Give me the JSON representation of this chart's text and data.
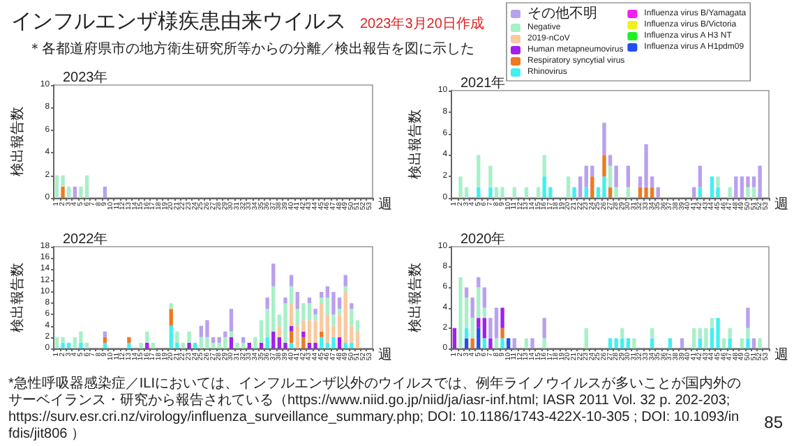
{
  "chart_data": [
    {
      "type": "other",
      "title": "インフルエンザ様疾患由来ウイルス",
      "subtitle": "2023年3月20日作成",
      "annotations": [
        "＊各都道府県市の地方衛生研究所等からの分離／検出報告を図に示した",
        "*急性呼吸器感染症／ILIにおいては、インフルエンザ以外のウイルスでは、例年ライノウイルスが多いことが国内外のサーベイランス・研究から報告されている（https://www.niid.go.jp/niid/ja/iasr-inf.html; IASR 2011 Vol. 32 p. 202-203; https://surv.esr.cri.nz/virology/influenza_surveillance_summary.php; DOI: 10.1186/1743-422X-10-305 ; DOI: 10.1093/infdis/jit806 ）",
        "85"
      ]
    },
    {
      "type": "bar",
      "title": "2023年",
      "xlabel": "週",
      "ylabel": "検出報告数",
      "stacked": true,
      "ylim": [
        0,
        10
      ],
      "yticks": [
        0,
        2,
        4,
        6,
        8,
        10
      ],
      "categories": [
        "1",
        "2",
        "3",
        "4",
        "5",
        "6",
        "7",
        "8",
        "9",
        "10",
        "11",
        "12",
        "13",
        "14",
        "15",
        "16",
        "17",
        "18",
        "19",
        "20",
        "21",
        "22",
        "23",
        "24",
        "25",
        "26",
        "27",
        "28",
        "29",
        "30",
        "31",
        "32",
        "33",
        "34",
        "35",
        "36",
        "37",
        "38",
        "39",
        "40",
        "41",
        "42",
        "43",
        "44",
        "45",
        "46",
        "47",
        "48",
        "49",
        "50",
        "51",
        "52",
        "53"
      ],
      "series": [
        {
          "color": "#f07820",
          "values": [
            0,
            1,
            0,
            0,
            0,
            0,
            0,
            0,
            0,
            0,
            0,
            0,
            0,
            0,
            0,
            0,
            0,
            0,
            0,
            0,
            0,
            0,
            0,
            0,
            0,
            0,
            0,
            0,
            0,
            0,
            0,
            0,
            0,
            0,
            0,
            0,
            0,
            0,
            0,
            0,
            0,
            0,
            0,
            0,
            0,
            0,
            0,
            0,
            0,
            0,
            0,
            0,
            0
          ]
        },
        {
          "color": "#a8f0c8",
          "values": [
            2,
            1,
            1,
            0,
            1,
            2,
            0,
            0,
            0,
            0,
            0,
            0,
            0,
            0,
            0,
            0,
            0,
            0,
            0,
            0,
            0,
            0,
            0,
            0,
            0,
            0,
            0,
            0,
            0,
            0,
            0,
            0,
            0,
            0,
            0,
            0,
            0,
            0,
            0,
            0,
            0,
            0,
            0,
            0,
            0,
            0,
            0,
            0,
            0,
            0,
            0,
            0,
            0
          ]
        },
        {
          "color": "#b9a0ee",
          "values": [
            0,
            0,
            0,
            1,
            0,
            0,
            0,
            0,
            1,
            0,
            0,
            0,
            0,
            0,
            0,
            0,
            0,
            0,
            0,
            0,
            0,
            0,
            0,
            0,
            0,
            0,
            0,
            0,
            0,
            0,
            0,
            0,
            0,
            0,
            0,
            0,
            0,
            0,
            0,
            0,
            0,
            0,
            0,
            0,
            0,
            0,
            0,
            0,
            0,
            0,
            0,
            0,
            0
          ]
        }
      ]
    },
    {
      "type": "bar",
      "title": "2021年",
      "xlabel": "週",
      "ylabel": "検出報告数",
      "stacked": true,
      "legend": "top",
      "ylim": [
        0,
        10
      ],
      "yticks": [
        0,
        2,
        4,
        6,
        8,
        10
      ],
      "categories": [
        "1",
        "2",
        "3",
        "4",
        "5",
        "6",
        "7",
        "8",
        "9",
        "10",
        "11",
        "12",
        "13",
        "14",
        "15",
        "16",
        "17",
        "18",
        "19",
        "20",
        "21",
        "22",
        "23",
        "24",
        "25",
        "26",
        "27",
        "28",
        "29",
        "30",
        "31",
        "32",
        "33",
        "34",
        "35",
        "36",
        "37",
        "38",
        "39",
        "40",
        "41",
        "42",
        "43",
        "44",
        "45",
        "46",
        "47",
        "48",
        "49",
        "50",
        "51",
        "52",
        "53"
      ],
      "series": [
        {
          "name": "Influenza virus A H1pdm09",
          "color": "#2050f0",
          "values": [
            0,
            0,
            0,
            0,
            0,
            0,
            0,
            0,
            0,
            0,
            0,
            0,
            0,
            0,
            0,
            0,
            0,
            0,
            0,
            0,
            0,
            0,
            0,
            0,
            0,
            0,
            0,
            0,
            0,
            0,
            0,
            0,
            0,
            0,
            0,
            0,
            0,
            0,
            0,
            0,
            0,
            0,
            0,
            0,
            0,
            0,
            0,
            0,
            0,
            0,
            0,
            0,
            0
          ]
        },
        {
          "name": "Influenza virus A H3 NT",
          "color": "#20f020",
          "values": [
            0,
            0,
            0,
            0,
            0,
            0,
            0,
            0,
            0,
            0,
            0,
            0,
            0,
            0,
            0,
            0,
            0,
            0,
            0,
            0,
            0,
            0,
            0,
            0,
            0,
            0,
            0,
            0,
            0,
            0,
            0,
            0,
            0,
            0,
            0,
            0,
            0,
            0,
            0,
            0,
            0,
            0,
            0,
            0,
            0,
            0,
            0,
            0,
            0,
            0,
            0,
            0,
            0
          ]
        },
        {
          "name": "Influenza virus B/Victoria",
          "color": "#f0f020",
          "values": [
            0,
            0,
            0,
            0,
            0,
            0,
            0,
            0,
            0,
            0,
            0,
            0,
            0,
            0,
            0,
            0,
            0,
            0,
            0,
            0,
            0,
            0,
            0,
            0,
            0,
            0,
            0,
            0,
            0,
            0,
            0,
            0,
            0,
            0,
            0,
            0,
            0,
            0,
            0,
            0,
            0,
            0,
            0,
            0,
            0,
            0,
            0,
            0,
            0,
            0,
            0,
            0,
            0
          ]
        },
        {
          "name": "Influenza virus B/Yamagata",
          "color": "#f020f0",
          "values": [
            0,
            0,
            0,
            0,
            0,
            0,
            0,
            0,
            0,
            0,
            0,
            0,
            0,
            0,
            0,
            0,
            0,
            0,
            0,
            0,
            0,
            0,
            0,
            0,
            0,
            0,
            0,
            0,
            0,
            0,
            0,
            0,
            0,
            0,
            0,
            0,
            0,
            0,
            0,
            0,
            0,
            0,
            0,
            0,
            0,
            0,
            0,
            0,
            0,
            0,
            0,
            0,
            0
          ]
        },
        {
          "name": "Rhinovirus",
          "color": "#40f0f0",
          "values": [
            0,
            0,
            0,
            0,
            1,
            0,
            1,
            0,
            0,
            0,
            0,
            0,
            0,
            0,
            0,
            2,
            1,
            0,
            0,
            0,
            1,
            0,
            1,
            0,
            1,
            2,
            0,
            0,
            0,
            0,
            0,
            0,
            0,
            0,
            0,
            0,
            0,
            0,
            0,
            0,
            0,
            1,
            0,
            2,
            1,
            0,
            0,
            0,
            0,
            0,
            0,
            0,
            0
          ]
        },
        {
          "name": "Respiratory syncytial virus",
          "color": "#f07820",
          "values": [
            0,
            0,
            0,
            0,
            0,
            0,
            0,
            0,
            0,
            0,
            0,
            0,
            0,
            0,
            0,
            0,
            0,
            0,
            0,
            0,
            0,
            0,
            0,
            2,
            0,
            2,
            1,
            0,
            0,
            0,
            0,
            1,
            1,
            1,
            0,
            0,
            0,
            0,
            0,
            0,
            0,
            0,
            0,
            0,
            0,
            0,
            0,
            0,
            0,
            0,
            0,
            0,
            0
          ]
        },
        {
          "name": "Human metapneumovirus",
          "color": "#a020f0",
          "values": [
            0,
            0,
            0,
            0,
            0,
            0,
            0,
            0,
            0,
            0,
            0,
            0,
            0,
            0,
            0,
            0,
            0,
            0,
            0,
            0,
            0,
            0,
            0,
            0,
            0,
            0,
            0,
            0,
            0,
            0,
            0,
            0,
            0,
            0,
            0,
            0,
            0,
            0,
            0,
            0,
            0,
            0,
            0,
            0,
            0,
            0,
            0,
            0,
            0,
            0,
            0,
            0,
            0
          ]
        },
        {
          "name": "2019-nCoV",
          "color": "#f9c9a0",
          "values": [
            0,
            0,
            0,
            0,
            0,
            0,
            0,
            0,
            0,
            0,
            0,
            0,
            0,
            0,
            0,
            0,
            0,
            0,
            0,
            0,
            0,
            0,
            0,
            0,
            0,
            0,
            0,
            0,
            0,
            0,
            0,
            0,
            0,
            0,
            0,
            0,
            0,
            0,
            0,
            0,
            0,
            0,
            0,
            0,
            0,
            0,
            0,
            0,
            0,
            0,
            0,
            0,
            0
          ]
        },
        {
          "name": "Negative",
          "color": "#a8f0c8",
          "values": [
            0,
            2,
            1,
            0,
            3,
            0,
            2,
            1,
            1,
            0,
            1,
            0,
            1,
            0,
            1,
            2,
            0,
            0,
            0,
            2,
            0,
            0,
            0,
            0,
            0,
            0,
            2,
            1,
            0,
            1,
            0,
            0,
            0,
            0,
            0,
            0,
            0,
            0,
            0,
            0,
            0,
            0,
            0,
            0,
            1,
            0,
            1,
            0,
            0,
            1,
            1,
            0,
            0
          ]
        },
        {
          "name": "その他不明",
          "color": "#b9a0ee",
          "values": [
            0,
            0,
            0,
            0,
            0,
            0,
            0,
            0,
            0,
            0,
            0,
            0,
            0,
            0,
            0,
            0,
            0,
            0,
            0,
            0,
            0,
            2,
            2,
            1,
            0,
            3,
            1,
            2,
            0,
            2,
            0,
            1,
            4,
            1,
            1,
            0,
            0,
            0,
            0,
            0,
            1,
            2,
            0,
            0,
            0,
            0,
            0,
            2,
            2,
            1,
            1,
            3,
            0
          ]
        }
      ]
    },
    {
      "type": "bar",
      "title": "2022年",
      "xlabel": "週",
      "ylabel": "検出報告数",
      "stacked": true,
      "ylim": [
        0,
        18
      ],
      "yticks": [
        0,
        2,
        4,
        6,
        8,
        10,
        12,
        14,
        16,
        18
      ],
      "categories": [
        "1",
        "2",
        "3",
        "4",
        "5",
        "6",
        "7",
        "8",
        "9",
        "10",
        "11",
        "12",
        "13",
        "14",
        "15",
        "16",
        "17",
        "18",
        "19",
        "20",
        "21",
        "22",
        "23",
        "24",
        "25",
        "26",
        "27",
        "28",
        "29",
        "30",
        "31",
        "32",
        "33",
        "34",
        "35",
        "36",
        "37",
        "38",
        "39",
        "40",
        "41",
        "42",
        "43",
        "44",
        "45",
        "46",
        "47",
        "48",
        "49",
        "50",
        "51",
        "52",
        "53"
      ],
      "series": [
        {
          "color": "#40f0f0",
          "values": [
            0,
            1,
            1,
            0,
            1,
            0,
            0,
            0,
            1,
            0,
            0,
            0,
            1,
            0,
            0,
            0,
            0,
            0,
            0,
            4,
            1,
            0,
            0,
            1,
            0,
            0,
            0,
            0,
            0,
            0,
            0,
            0,
            0,
            0,
            0,
            2,
            0,
            0,
            0,
            1,
            0,
            0,
            0,
            0,
            2,
            1,
            2,
            0,
            1,
            1,
            0,
            0,
            0
          ]
        },
        {
          "color": "#f07820",
          "values": [
            0,
            0,
            0,
            0,
            0,
            0,
            0,
            0,
            1,
            0,
            0,
            0,
            1,
            0,
            0,
            0,
            0,
            0,
            0,
            3,
            0,
            0,
            0,
            0,
            0,
            0,
            0,
            0,
            0,
            0,
            0,
            0,
            0,
            0,
            0,
            0,
            0,
            0,
            0,
            2,
            0,
            2,
            0,
            0,
            1,
            0,
            0,
            0,
            0,
            0,
            0,
            0,
            0
          ]
        },
        {
          "color": "#a020f0",
          "values": [
            0,
            0,
            0,
            0,
            0,
            0,
            0,
            0,
            0,
            0,
            0,
            0,
            0,
            0,
            0,
            1,
            0,
            0,
            0,
            0,
            0,
            0,
            1,
            0,
            0,
            0,
            0,
            0,
            0,
            2,
            0,
            0,
            1,
            0,
            1,
            0,
            3,
            2,
            1,
            1,
            0,
            1,
            1,
            1,
            0,
            0,
            0,
            2,
            0,
            0,
            0,
            0,
            0
          ]
        },
        {
          "color": "#f9c9a0",
          "values": [
            0,
            0,
            0,
            0,
            0,
            0,
            0,
            0,
            0,
            0,
            0,
            0,
            0,
            0,
            0,
            0,
            0,
            0,
            0,
            0,
            0,
            0,
            0,
            0,
            0,
            0,
            0,
            0,
            0,
            0,
            0,
            0,
            0,
            0,
            0,
            0,
            0,
            2,
            0,
            4,
            4,
            2,
            4,
            4,
            5,
            5,
            2,
            4,
            9,
            3,
            3,
            0,
            0
          ]
        },
        {
          "color": "#a8f0c8",
          "values": [
            2,
            1,
            0,
            2,
            2,
            1,
            0,
            0,
            0,
            0,
            0,
            0,
            0,
            0,
            1,
            2,
            1,
            0,
            0,
            1,
            2,
            1,
            2,
            0,
            2,
            2,
            1,
            1,
            2,
            1,
            1,
            1,
            0,
            2,
            4,
            5,
            8,
            2,
            7,
            3,
            3,
            3,
            3,
            1,
            1,
            3,
            2,
            1,
            1,
            3,
            2,
            0,
            0
          ]
        },
        {
          "color": "#b9a0ee",
          "values": [
            0,
            0,
            0,
            0,
            0,
            0,
            0,
            0,
            1,
            0,
            0,
            0,
            0,
            0,
            0,
            0,
            0,
            0,
            0,
            0,
            0,
            0,
            0,
            0,
            2,
            3,
            1,
            1,
            1,
            4,
            0,
            1,
            0,
            0,
            0,
            2,
            4,
            0,
            1,
            2,
            3,
            0,
            1,
            1,
            1,
            2,
            4,
            2,
            2,
            1,
            0,
            0,
            0
          ]
        }
      ]
    },
    {
      "type": "bar",
      "title": "2020年",
      "xlabel": "週",
      "ylabel": "検出報告数",
      "stacked": true,
      "ylim": [
        0,
        10
      ],
      "yticks": [
        0,
        2,
        4,
        6,
        8,
        10
      ],
      "categories": [
        "1",
        "2",
        "3",
        "4",
        "5",
        "6",
        "7",
        "8",
        "9",
        "10",
        "11",
        "12",
        "13",
        "14",
        "15",
        "16",
        "17",
        "18",
        "19",
        "20",
        "21",
        "22",
        "23",
        "24",
        "25",
        "26",
        "27",
        "28",
        "29",
        "30",
        "31",
        "32",
        "33",
        "34",
        "35",
        "36",
        "37",
        "38",
        "39",
        "40",
        "41",
        "42",
        "43",
        "44",
        "45",
        "46",
        "47",
        "48",
        "49",
        "50",
        "51",
        "52",
        "53"
      ],
      "series": [
        {
          "color": "#2050f0",
          "values": [
            0,
            0,
            1,
            0,
            2,
            0,
            0,
            0,
            0,
            1,
            0,
            0,
            0,
            0,
            0,
            0,
            0,
            0,
            0,
            0,
            0,
            0,
            0,
            0,
            0,
            0,
            0,
            0,
            0,
            0,
            0,
            0,
            0,
            0,
            0,
            0,
            0,
            0,
            0,
            0,
            0,
            0,
            0,
            0,
            0,
            0,
            0,
            0,
            0,
            0,
            0,
            0,
            0
          ]
        },
        {
          "color": "#40f0f0",
          "values": [
            0,
            0,
            1,
            0,
            0,
            1,
            0,
            0,
            1,
            0,
            0,
            0,
            0,
            0,
            0,
            0,
            0,
            0,
            0,
            0,
            0,
            0,
            0,
            0,
            0,
            0,
            1,
            1,
            1,
            1,
            0,
            0,
            0,
            1,
            0,
            0,
            1,
            0,
            0,
            0,
            0,
            1,
            0,
            2,
            3,
            0,
            1,
            0,
            0,
            1,
            0,
            0,
            0
          ]
        },
        {
          "color": "#f07820",
          "values": [
            0,
            0,
            0,
            1,
            0,
            0,
            0,
            0,
            1,
            0,
            0,
            0,
            0,
            0,
            0,
            0,
            0,
            0,
            0,
            0,
            0,
            0,
            0,
            0,
            0,
            0,
            0,
            0,
            0,
            0,
            0,
            0,
            0,
            0,
            0,
            0,
            0,
            0,
            0,
            0,
            0,
            0,
            0,
            0,
            0,
            0,
            0,
            0,
            0,
            0,
            0,
            0,
            0
          ]
        },
        {
          "color": "#a020f0",
          "values": [
            2,
            0,
            0,
            0,
            1,
            2,
            1,
            0,
            2,
            0,
            0,
            0,
            0,
            0,
            0,
            0,
            0,
            0,
            0,
            0,
            0,
            0,
            0,
            0,
            0,
            0,
            0,
            0,
            0,
            0,
            0,
            0,
            0,
            0,
            0,
            0,
            0,
            0,
            0,
            0,
            0,
            0,
            0,
            0,
            0,
            0,
            0,
            0,
            0,
            0,
            0,
            0,
            0
          ]
        },
        {
          "color": "#a8f0c8",
          "values": [
            0,
            7,
            3,
            2,
            3,
            1,
            0,
            1,
            0,
            0,
            0,
            0,
            1,
            0,
            0,
            1,
            0,
            0,
            0,
            0,
            0,
            0,
            2,
            0,
            0,
            0,
            0,
            0,
            1,
            0,
            1,
            0,
            0,
            1,
            0,
            0,
            0,
            0,
            0,
            0,
            2,
            1,
            2,
            1,
            0,
            1,
            1,
            0,
            1,
            1,
            0,
            1,
            0
          ]
        },
        {
          "color": "#b9a0ee",
          "values": [
            0,
            0,
            1,
            2,
            1,
            2,
            2,
            3,
            0,
            0,
            1,
            0,
            0,
            1,
            0,
            2,
            0,
            0,
            0,
            0,
            0,
            0,
            0,
            0,
            0,
            0,
            0,
            0,
            0,
            0,
            0,
            0,
            0,
            0,
            0,
            0,
            0,
            0,
            1,
            0,
            0,
            0,
            0,
            0,
            0,
            0,
            0,
            0,
            0,
            2,
            1,
            0,
            0
          ]
        }
      ]
    }
  ]
}
